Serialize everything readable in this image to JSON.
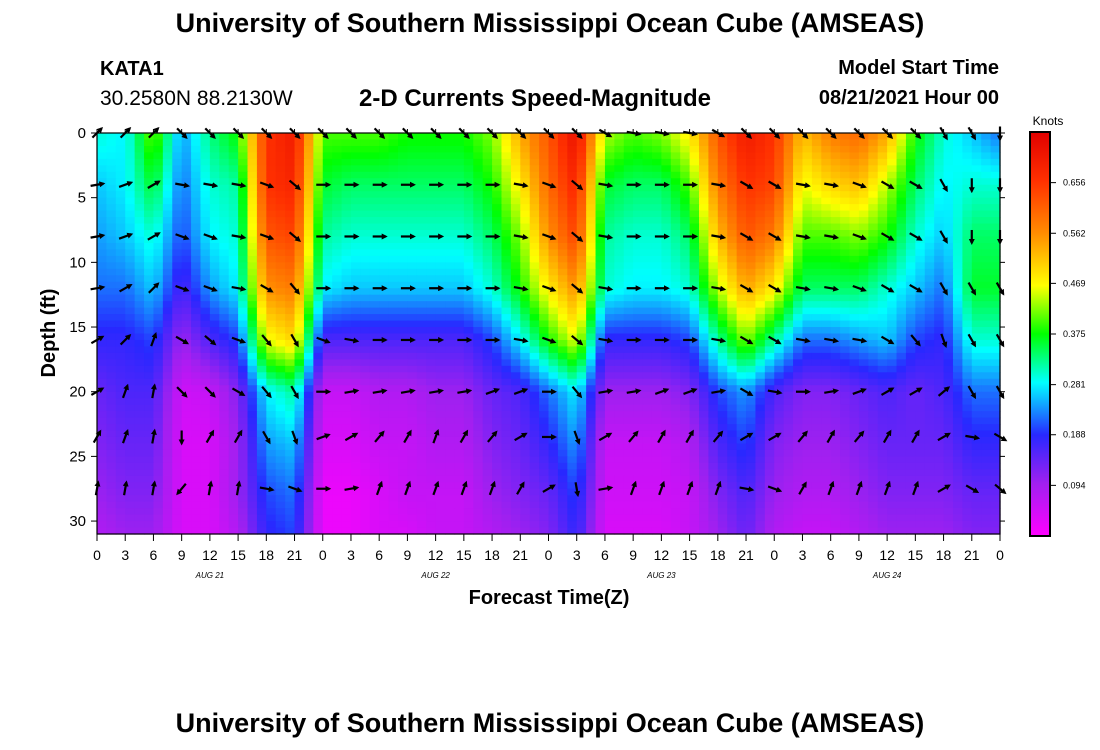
{
  "header": {
    "title_top": "University of Southern Mississippi Ocean Cube (AMSEAS)",
    "station_id": "KATA1",
    "station_coords": "30.2580N  88.2130W",
    "plot_title": "2-D Currents Speed-Magnitude",
    "model_start_label": "Model Start Time",
    "model_start_value": "08/21/2021 Hour 00",
    "title_bottom": "University of Southern Mississippi Ocean Cube (AMSEAS)"
  },
  "chart_data": {
    "type": "heatmap",
    "title": "2-D Currents Speed-Magnitude",
    "xlabel": "Forecast Time(Z)",
    "ylabel": "Depth (ft)",
    "xlim": [
      0,
      96
    ],
    "ylim": [
      0,
      31
    ],
    "x_ticks": [
      0,
      3,
      6,
      9,
      12,
      15,
      18,
      21,
      24,
      27,
      30,
      33,
      36,
      39,
      42,
      45,
      48,
      51,
      54,
      57,
      60,
      63,
      66,
      69,
      72,
      75,
      78,
      81,
      84,
      87,
      90,
      93,
      96
    ],
    "x_tick_labels": [
      "0",
      "3",
      "6",
      "9",
      "12",
      "15",
      "18",
      "21",
      "0",
      "3",
      "6",
      "9",
      "12",
      "15",
      "18",
      "21",
      "0",
      "3",
      "6",
      "9",
      "12",
      "15",
      "18",
      "21",
      "0",
      "3",
      "6",
      "9",
      "12",
      "15",
      "18",
      "21",
      "0"
    ],
    "day_labels": [
      {
        "label": "AUG 21",
        "hour": 12
      },
      {
        "label": "AUG 22",
        "hour": 36
      },
      {
        "label": "AUG 23",
        "hour": 60
      },
      {
        "label": "AUG 24",
        "hour": 84
      }
    ],
    "y_ticks": [
      0,
      5,
      10,
      15,
      20,
      25,
      30
    ],
    "colorbar": {
      "label": "Knots",
      "min": 0.0,
      "max": 0.75,
      "ticks": [
        0.094,
        0.188,
        0.281,
        0.375,
        0.469,
        0.562,
        0.656
      ]
    },
    "speed_grid": {
      "hours": [
        0,
        3,
        6,
        9,
        12,
        15,
        18,
        21,
        24,
        27,
        30,
        33,
        36,
        39,
        42,
        45,
        48,
        51,
        54,
        57,
        60,
        63,
        66,
        69,
        72,
        75,
        78,
        81,
        84,
        87,
        90,
        93,
        96
      ],
      "depths_ft": [
        0,
        4,
        8,
        12,
        16,
        20,
        24,
        28,
        31
      ],
      "values_knots": [
        [
          0.3,
          0.28,
          0.42,
          0.24,
          0.33,
          0.38,
          0.66,
          0.7,
          0.4,
          0.4,
          0.4,
          0.38,
          0.38,
          0.38,
          0.42,
          0.54,
          0.62,
          0.72,
          0.44,
          0.4,
          0.42,
          0.48,
          0.62,
          0.7,
          0.66,
          0.52,
          0.58,
          0.6,
          0.54,
          0.38,
          0.3,
          0.26,
          0.22
        ],
        [
          0.26,
          0.28,
          0.36,
          0.22,
          0.3,
          0.32,
          0.66,
          0.68,
          0.36,
          0.34,
          0.34,
          0.34,
          0.34,
          0.34,
          0.38,
          0.48,
          0.6,
          0.68,
          0.36,
          0.34,
          0.34,
          0.4,
          0.58,
          0.66,
          0.64,
          0.46,
          0.5,
          0.52,
          0.44,
          0.34,
          0.28,
          0.3,
          0.3
        ],
        [
          0.24,
          0.26,
          0.3,
          0.2,
          0.28,
          0.3,
          0.62,
          0.64,
          0.32,
          0.3,
          0.3,
          0.3,
          0.3,
          0.3,
          0.34,
          0.42,
          0.56,
          0.64,
          0.32,
          0.3,
          0.3,
          0.34,
          0.52,
          0.62,
          0.58,
          0.4,
          0.4,
          0.42,
          0.38,
          0.3,
          0.26,
          0.34,
          0.34
        ],
        [
          0.22,
          0.22,
          0.26,
          0.16,
          0.24,
          0.28,
          0.56,
          0.58,
          0.28,
          0.26,
          0.26,
          0.26,
          0.26,
          0.26,
          0.3,
          0.38,
          0.48,
          0.56,
          0.3,
          0.28,
          0.28,
          0.3,
          0.44,
          0.54,
          0.48,
          0.34,
          0.34,
          0.34,
          0.3,
          0.26,
          0.22,
          0.36,
          0.36
        ],
        [
          0.18,
          0.18,
          0.2,
          0.1,
          0.16,
          0.2,
          0.46,
          0.5,
          0.16,
          0.16,
          0.16,
          0.16,
          0.16,
          0.16,
          0.2,
          0.28,
          0.38,
          0.46,
          0.18,
          0.18,
          0.18,
          0.2,
          0.32,
          0.42,
          0.32,
          0.22,
          0.22,
          0.24,
          0.26,
          0.2,
          0.18,
          0.3,
          0.3
        ],
        [
          0.14,
          0.16,
          0.16,
          0.05,
          0.06,
          0.12,
          0.28,
          0.32,
          0.06,
          0.06,
          0.08,
          0.08,
          0.1,
          0.1,
          0.14,
          0.16,
          0.22,
          0.28,
          0.1,
          0.1,
          0.1,
          0.12,
          0.2,
          0.24,
          0.16,
          0.12,
          0.12,
          0.14,
          0.16,
          0.14,
          0.16,
          0.22,
          0.22
        ],
        [
          0.12,
          0.14,
          0.14,
          0.04,
          0.04,
          0.1,
          0.24,
          0.26,
          0.04,
          0.04,
          0.06,
          0.06,
          0.08,
          0.08,
          0.12,
          0.14,
          0.18,
          0.24,
          0.06,
          0.06,
          0.06,
          0.08,
          0.16,
          0.2,
          0.12,
          0.1,
          0.1,
          0.12,
          0.14,
          0.14,
          0.14,
          0.18,
          0.18
        ],
        [
          0.1,
          0.12,
          0.12,
          0.04,
          0.04,
          0.1,
          0.2,
          0.22,
          0.02,
          0.02,
          0.04,
          0.06,
          0.06,
          0.06,
          0.1,
          0.12,
          0.14,
          0.2,
          0.05,
          0.05,
          0.05,
          0.06,
          0.12,
          0.16,
          0.1,
          0.08,
          0.08,
          0.1,
          0.12,
          0.12,
          0.12,
          0.14,
          0.14
        ],
        [
          0.08,
          0.1,
          0.1,
          0.04,
          0.04,
          0.08,
          0.18,
          0.2,
          0.02,
          0.02,
          0.04,
          0.04,
          0.06,
          0.06,
          0.08,
          0.1,
          0.12,
          0.18,
          0.04,
          0.04,
          0.04,
          0.06,
          0.1,
          0.14,
          0.08,
          0.06,
          0.06,
          0.08,
          0.1,
          0.1,
          0.1,
          0.12,
          0.12
        ]
      ]
    },
    "vectors": {
      "hours": [
        0,
        3,
        6,
        9,
        12,
        15,
        18,
        21,
        24,
        27,
        30,
        33,
        36,
        39,
        42,
        45,
        48,
        51,
        54,
        57,
        60,
        63,
        66,
        69,
        72,
        75,
        78,
        81,
        84,
        87,
        90,
        93,
        96
      ],
      "depths_ft": [
        0,
        4,
        8,
        12,
        16,
        20,
        23.5,
        27.5
      ],
      "direction_deg": [
        [
          45,
          45,
          45,
          135,
          135,
          135,
          135,
          135,
          135,
          135,
          135,
          135,
          135,
          135,
          135,
          135,
          135,
          135,
          120,
          100,
          100,
          100,
          120,
          135,
          135,
          135,
          135,
          135,
          135,
          135,
          150,
          150,
          180
        ],
        [
          80,
          70,
          60,
          100,
          100,
          100,
          110,
          130,
          90,
          90,
          90,
          90,
          90,
          90,
          90,
          100,
          110,
          130,
          100,
          90,
          90,
          90,
          100,
          120,
          120,
          100,
          100,
          110,
          120,
          120,
          150,
          180,
          180
        ],
        [
          80,
          70,
          60,
          110,
          110,
          100,
          110,
          130,
          90,
          90,
          90,
          90,
          90,
          90,
          90,
          100,
          110,
          130,
          100,
          90,
          90,
          90,
          100,
          120,
          120,
          100,
          100,
          110,
          120,
          120,
          150,
          180,
          180
        ],
        [
          80,
          60,
          45,
          110,
          110,
          100,
          120,
          140,
          90,
          90,
          90,
          90,
          90,
          90,
          90,
          100,
          110,
          130,
          100,
          90,
          90,
          90,
          100,
          120,
          120,
          100,
          100,
          110,
          120,
          120,
          150,
          150,
          150
        ],
        [
          60,
          45,
          20,
          120,
          130,
          110,
          140,
          150,
          110,
          100,
          90,
          90,
          90,
          90,
          90,
          100,
          110,
          130,
          100,
          90,
          90,
          90,
          100,
          120,
          120,
          100,
          100,
          100,
          120,
          140,
          160,
          150,
          150
        ],
        [
          60,
          20,
          10,
          135,
          135,
          120,
          140,
          150,
          90,
          80,
          80,
          80,
          80,
          80,
          70,
          70,
          90,
          140,
          80,
          80,
          70,
          70,
          80,
          120,
          100,
          90,
          80,
          70,
          60,
          60,
          50,
          150,
          150
        ],
        [
          30,
          20,
          10,
          180,
          30,
          30,
          150,
          160,
          70,
          60,
          40,
          30,
          20,
          30,
          40,
          60,
          90,
          160,
          60,
          40,
          30,
          30,
          40,
          60,
          60,
          40,
          30,
          40,
          30,
          30,
          60,
          100,
          120
        ],
        [
          10,
          10,
          10,
          220,
          10,
          10,
          100,
          110,
          90,
          80,
          20,
          20,
          20,
          20,
          20,
          30,
          60,
          170,
          80,
          20,
          20,
          20,
          20,
          100,
          110,
          30,
          20,
          20,
          20,
          20,
          60,
          120,
          130
        ]
      ]
    }
  }
}
